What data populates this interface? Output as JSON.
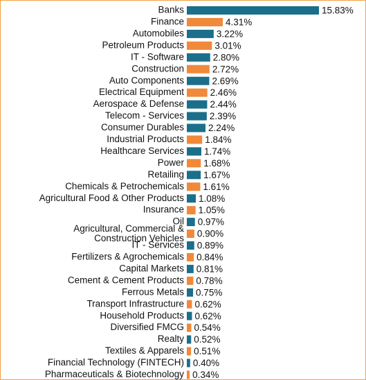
{
  "chart_data": {
    "type": "bar",
    "categories": [
      "Banks",
      "Finance",
      "Automobiles",
      "Petroleum Products",
      "IT - Software",
      "Construction",
      "Auto Components",
      "Electrical Equipment",
      "Aerospace & Defense",
      "Telecom - Services",
      "Consumer Durables",
      "Industrial Products",
      "Healthcare Services",
      "Power",
      "Retailing",
      "Chemicals & Petrochemicals",
      "Agricultural Food & Other Products",
      "Insurance",
      "Oil",
      "Agricultural, Commercial &\nConstruction Vehicles",
      "IT - Services",
      "Fertilizers & Agrochemicals",
      "Capital Markets",
      "Cement & Cement Products",
      "Ferrous Metals",
      "Transport Infrastructure",
      "Household Products",
      "Diversified FMCG",
      "Realty",
      "Textiles & Apparels",
      "Financial Technology (FINTECH)",
      "Pharmaceuticals & Biotechnology"
    ],
    "values": [
      15.83,
      4.31,
      3.22,
      3.01,
      2.8,
      2.72,
      2.69,
      2.46,
      2.44,
      2.39,
      2.24,
      1.84,
      1.74,
      1.68,
      1.67,
      1.61,
      1.08,
      1.05,
      0.97,
      0.9,
      0.89,
      0.84,
      0.81,
      0.78,
      0.75,
      0.62,
      0.62,
      0.54,
      0.52,
      0.51,
      0.4,
      0.34
    ],
    "value_labels": [
      "15.83%",
      "4.31%",
      "3.22%",
      "3.01%",
      "2.80%",
      "2.72%",
      "2.69%",
      "2.46%",
      "2.44%",
      "2.39%",
      "2.24%",
      "1.84%",
      "1.74%",
      "1.68%",
      "1.67%",
      "1.61%",
      "1.08%",
      "1.05%",
      "0.97%",
      "0.90%",
      "0.89%",
      "0.84%",
      "0.81%",
      "0.78%",
      "0.75%",
      "0.62%",
      "0.62%",
      "0.54%",
      "0.52%",
      "0.51%",
      "0.40%",
      "0.34%"
    ],
    "colors": [
      "#1b6f8a",
      "#f0893a",
      "#1b6f8a",
      "#f0893a",
      "#1b6f8a",
      "#f0893a",
      "#1b6f8a",
      "#f0893a",
      "#1b6f8a",
      "#1b6f8a",
      "#1b6f8a",
      "#f0893a",
      "#1b6f8a",
      "#f0893a",
      "#1b6f8a",
      "#f0893a",
      "#1b6f8a",
      "#f0893a",
      "#1b6f8a",
      "#f0893a",
      "#1b6f8a",
      "#f0893a",
      "#1b6f8a",
      "#f0893a",
      "#1b6f8a",
      "#f0893a",
      "#1b6f8a",
      "#f0893a",
      "#1b6f8a",
      "#f0893a",
      "#1b6f8a",
      "#f0893a"
    ]
  }
}
